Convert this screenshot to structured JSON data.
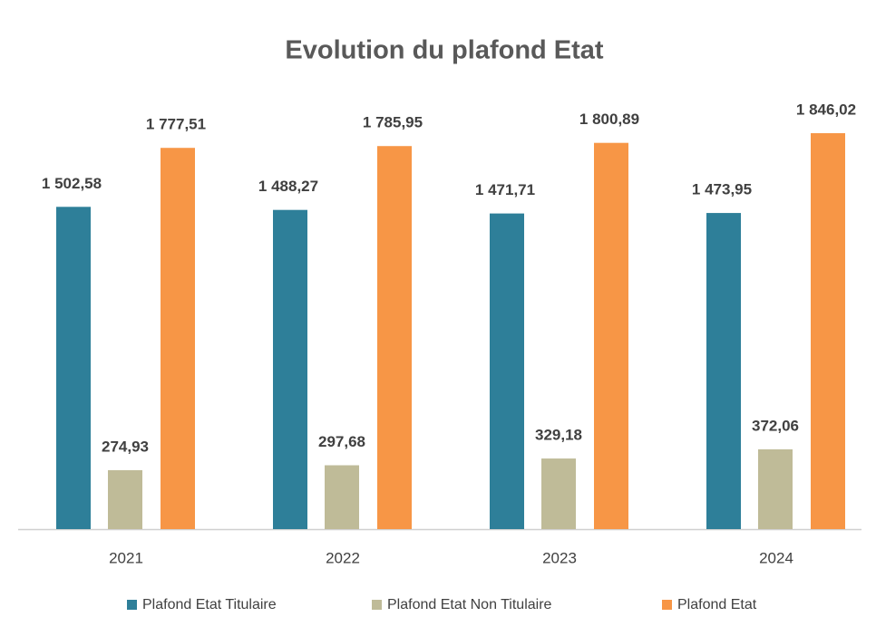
{
  "chart_data": {
    "type": "bar",
    "title": "Evolution du plafond Etat",
    "categories": [
      "2021",
      "2022",
      "2023",
      "2024"
    ],
    "series": [
      {
        "name": "Plafond Etat Titulaire",
        "color": "#2e7f99",
        "values": [
          1502.58,
          1488.27,
          1471.71,
          1473.95
        ],
        "value_labels": [
          "1 502,58",
          "1 488,27",
          "1 471,71",
          "1 473,95"
        ]
      },
      {
        "name": "Plafond Etat Non Titulaire",
        "color": "#bfbb98",
        "values": [
          274.93,
          297.68,
          329.18,
          372.06
        ],
        "value_labels": [
          "274,93",
          "297,68",
          "329,18",
          "372,06"
        ]
      },
      {
        "name": "Plafond Etat",
        "color": "#f79646",
        "values": [
          1777.51,
          1785.95,
          1800.89,
          1846.02
        ],
        "value_labels": [
          "1 777,51",
          "1 785,95",
          "1 800,89",
          "1 846,02"
        ]
      }
    ]
  }
}
